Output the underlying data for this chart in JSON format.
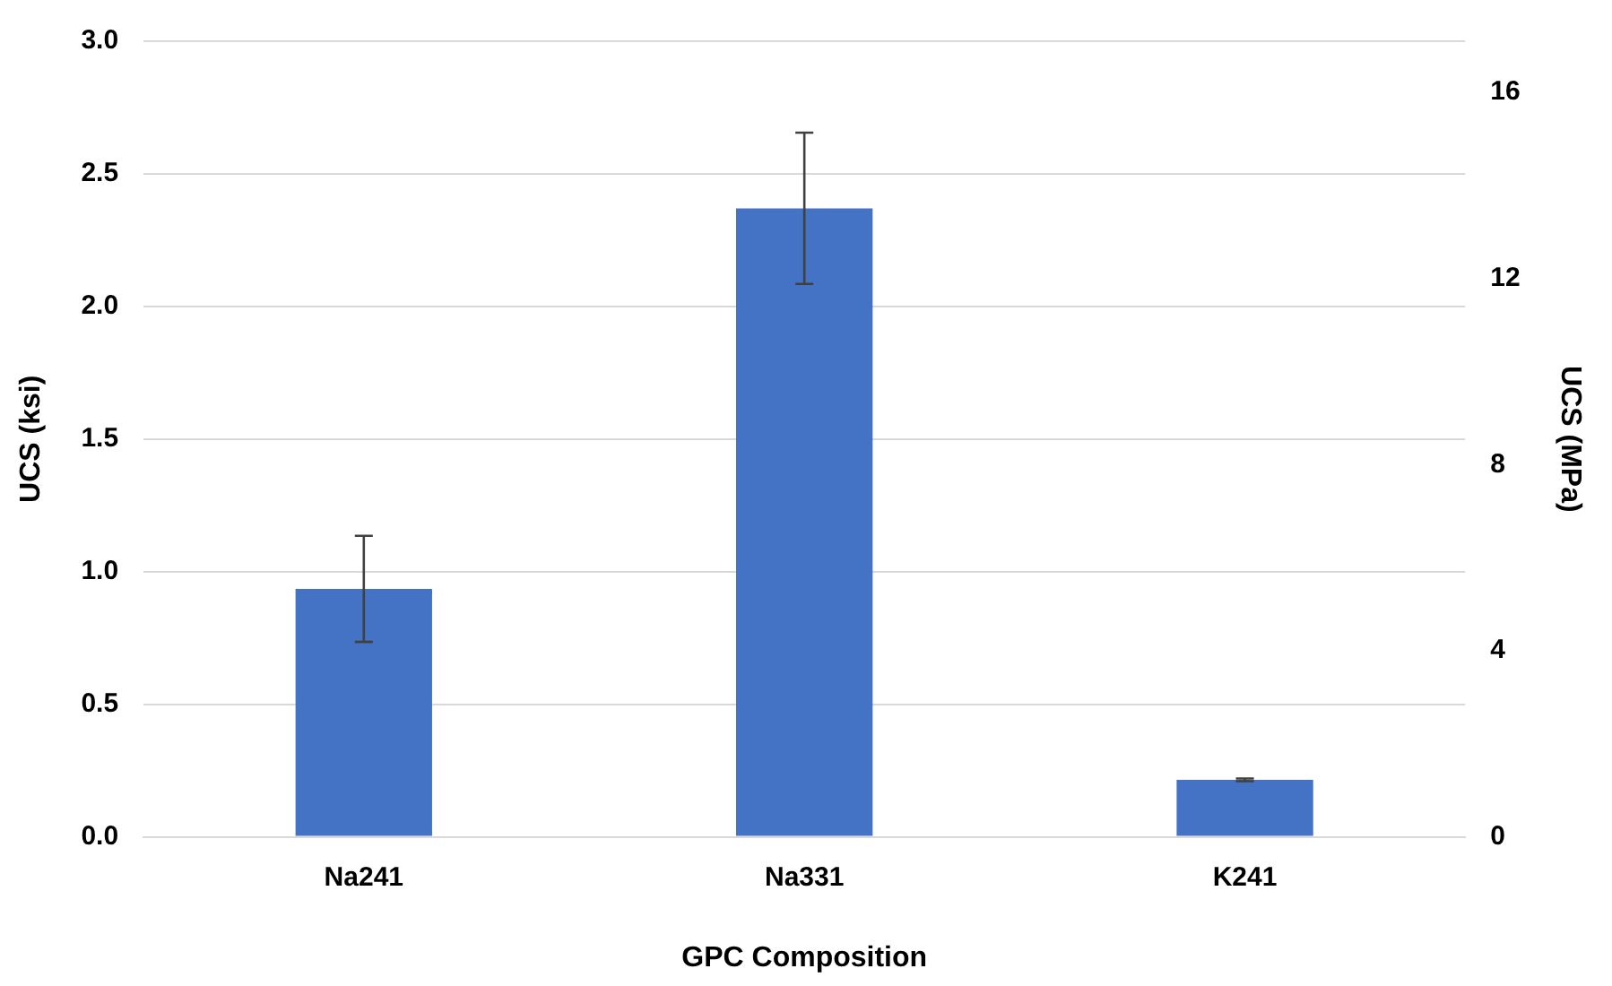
{
  "chart_data": {
    "type": "bar",
    "xlabel": "GPC Composition",
    "ylabel": "UCS (ksi)",
    "y2label": "UCS (MPa)",
    "categories": [
      "Na241",
      "Na331",
      "K241"
    ],
    "series": [
      {
        "color": "#4472c4",
        "values": [
          0.935,
          2.37,
          0.215
        ],
        "errors": [
          0.2,
          0.285,
          0.005
        ]
      }
    ],
    "ylim": [
      0,
      3
    ],
    "yticks": [
      {
        "value": 0,
        "label": "0.0"
      },
      {
        "value": 0.5,
        "label": "0.5"
      },
      {
        "value": 1,
        "label": "1.0"
      },
      {
        "value": 1.5,
        "label": "1.5"
      },
      {
        "value": 2,
        "label": "2.0"
      },
      {
        "value": 2.5,
        "label": "2.5"
      },
      {
        "value": 3,
        "label": "3.0"
      }
    ],
    "y2lim": [
      0,
      17.1
    ],
    "y2ticks": [
      0,
      4,
      8,
      12,
      16
    ],
    "grid": "y",
    "legend": false
  }
}
